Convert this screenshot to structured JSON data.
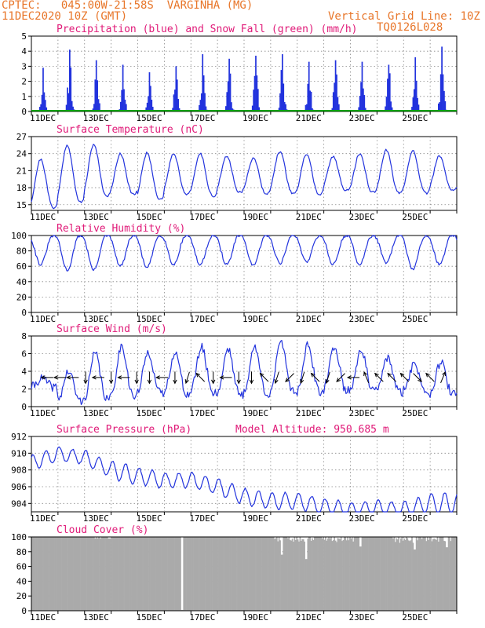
{
  "header": {
    "line1": "CPTEC:   045:00W-21:58S  VARGINHA (MG)",
    "line2": "11DEC2020 10Z (GMT)",
    "grid_note": "Vertical Grid Line: 10Z",
    "model_code": "TQ0126L028"
  },
  "colors": {
    "header": "#e8762a",
    "title": "#e01a78",
    "series": "#2233dd",
    "snow": "#00a000",
    "cloud": "#aaaaaa",
    "grid": "#888888"
  },
  "x_tick_labels": [
    "11DEC",
    "13DEC",
    "15DEC",
    "17DEC",
    "19DEC",
    "21DEC",
    "23DEC",
    "25DEC"
  ],
  "chart_data": [
    {
      "type": "bar",
      "title": "Precipitation (blue) and Snow Fall (green) (mm/h)",
      "y_ticks": [
        "0",
        "1",
        "2",
        "3",
        "4",
        "5"
      ],
      "ylim": [
        0,
        5
      ],
      "daily_peaks_mm_h": [
        2.9,
        4.1,
        3.4,
        3.1,
        2.6,
        3.0,
        3.8,
        3.5,
        3.7,
        3.8,
        3.3,
        3.4,
        3.3,
        3.1,
        3.6,
        4.3
      ],
      "snow_mm_h": 0
    },
    {
      "type": "line",
      "title": "Surface Temperature (nC)",
      "y_ticks": [
        "15",
        "18",
        "21",
        "24",
        "27"
      ],
      "ylim": [
        14,
        27
      ],
      "daily_max": [
        23.0,
        25.5,
        25.6,
        24.0,
        24.1,
        24.0,
        24.0,
        23.5,
        23.3,
        24.4,
        23.9,
        23.5,
        24.0,
        24.6,
        24.5,
        23.6
      ],
      "daily_min": [
        14.5,
        15.5,
        16.5,
        16.8,
        16.0,
        16.9,
        16.5,
        17.2,
        17.0,
        17.0,
        16.8,
        17.5,
        17.2,
        17.0,
        17.0,
        17.5
      ]
    },
    {
      "type": "line",
      "title": "Relative Humidity (%)",
      "y_ticks": [
        "0",
        "20",
        "40",
        "60",
        "80",
        "100"
      ],
      "ylim": [
        0,
        100
      ],
      "daily_max": [
        100,
        100,
        100,
        100,
        100,
        100,
        100,
        100,
        100,
        100,
        100,
        100,
        100,
        100,
        100,
        100
      ],
      "daily_min": [
        62,
        55,
        55,
        60,
        58,
        62,
        62,
        62,
        60,
        64,
        66,
        62,
        62,
        64,
        56,
        62
      ]
    },
    {
      "type": "line",
      "title": "Surface Wind (m/s)",
      "y_ticks": [
        "0",
        "2",
        "4",
        "6",
        "8"
      ],
      "ylim": [
        0,
        8
      ],
      "daily_max": [
        3.2,
        4.0,
        6.0,
        6.9,
        6.2,
        6.2,
        6.7,
        6.6,
        6.7,
        7.3,
        7.0,
        6.8,
        6.5,
        5.6,
        4.8,
        5.0
      ],
      "daily_min": [
        2.2,
        0.6,
        0.8,
        1.1,
        1.5,
        1.4,
        1.6,
        1.3,
        1.5,
        1.7,
        1.5,
        1.8,
        1.8,
        1.6,
        1.8,
        1.4
      ],
      "arrow_directions": [
        "W",
        "W",
        "W",
        "S",
        "W",
        "S",
        "W",
        "S",
        "S",
        "W",
        "S",
        "SSW",
        "NW",
        "S",
        "W",
        "S",
        "S",
        "NW",
        "SSW",
        "SW",
        "SSW",
        "NW",
        "SSW",
        "SW",
        "W",
        "NNW",
        "NW",
        "NW",
        "NW",
        "SE",
        "NW",
        "NNE"
      ]
    },
    {
      "type": "line",
      "title": "Surface Pressure (hPa)",
      "annotation": "Model Altitude: 950.685 m",
      "y_ticks": [
        "904",
        "906",
        "908",
        "910",
        "912"
      ],
      "ylim": [
        903,
        912
      ],
      "daily_mean": [
        908.8,
        909.9,
        909.5,
        908.0,
        907.3,
        906.7,
        906.8,
        906.0,
        904.8,
        904.3,
        904.3,
        903.6,
        903.2,
        903.5,
        903.2,
        904.0
      ],
      "amplitude": [
        1.0,
        0.9,
        1.0,
        1.2,
        1.1,
        1.0,
        1.0,
        1.1,
        1.1,
        1.1,
        1.1,
        1.1,
        1.0,
        1.0,
        1.2,
        1.4
      ]
    },
    {
      "type": "area",
      "title": "Cloud Cover (%)",
      "y_ticks": [
        "0",
        "20",
        "40",
        "60",
        "80",
        "100"
      ],
      "ylim": [
        0,
        100
      ],
      "typical_percent": 98,
      "minimum_percent": 1
    }
  ]
}
